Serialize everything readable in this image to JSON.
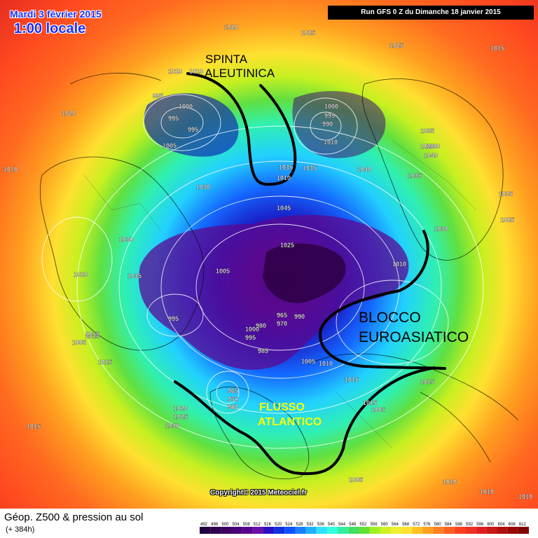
{
  "header": {
    "date": "Mardi 3 février 2015",
    "time": "1:00 locale",
    "run": "Run GFS 0 Z du Dimanche 18 janvier 2015"
  },
  "annotations": {
    "aleutian": [
      "SPINTA",
      "ALEUTINICA"
    ],
    "euroasian": [
      "BLOCCO",
      "EUROASIATICO"
    ],
    "atlantic": [
      "FLUSSO",
      "ATLANTICO"
    ]
  },
  "pressure_labels": [
    "1020",
    "1010",
    "1025",
    "1025",
    "1015",
    "1010",
    "1015",
    "1015",
    "1020",
    "995",
    "1000",
    "995",
    "995",
    "1005",
    "1000",
    "995",
    "990",
    "1010",
    "1035",
    "1035",
    "1030",
    "1035",
    "1010",
    "1035",
    "1020",
    "1040",
    "1040",
    "1030",
    "1045",
    "1035",
    "1025",
    "1030",
    "1030",
    "1020",
    "1035",
    "1025",
    "1005",
    "1010",
    "995",
    "965",
    "970",
    "980",
    "1000",
    "995",
    "985",
    "990",
    "1005",
    "1010",
    "1015",
    "1015",
    "1015",
    "1005",
    "1015",
    "965",
    "975",
    "980",
    "1020",
    "1025",
    "1030",
    "1015",
    "1010",
    "1005",
    "1010",
    "1010",
    "1005",
    "1010"
  ],
  "footer": {
    "title": "Géop. Z500 & pression au sol",
    "forecast": "(+ 384h)",
    "copyright": "Copyright© 2015 Meteociel.fr"
  },
  "colorscale": {
    "ticks": [
      "492",
      "496",
      "500",
      "504",
      "508",
      "512",
      "516",
      "520",
      "524",
      "528",
      "532",
      "536",
      "540",
      "544",
      "548",
      "552",
      "556",
      "560",
      "564",
      "568",
      "572",
      "576",
      "580",
      "584",
      "588",
      "592",
      "596",
      "600",
      "604",
      "608",
      "612"
    ],
    "colors": [
      "#200040",
      "#300050",
      "#3c0060",
      "#4a0078",
      "#5a0090",
      "#6a10a8",
      "#2a10c0",
      "#1030e0",
      "#1050ff",
      "#1880ff",
      "#20b0ff",
      "#30e0ff",
      "#30ffe0",
      "#30f0a0",
      "#40e060",
      "#60e030",
      "#a0f020",
      "#d0f020",
      "#f0f030",
      "#ffe030",
      "#ffc020",
      "#ffa020",
      "#ff8020",
      "#ff6020",
      "#ff4020",
      "#f03020",
      "#e02020",
      "#c81818",
      "#b01010",
      "#980808",
      "#800000"
    ]
  }
}
